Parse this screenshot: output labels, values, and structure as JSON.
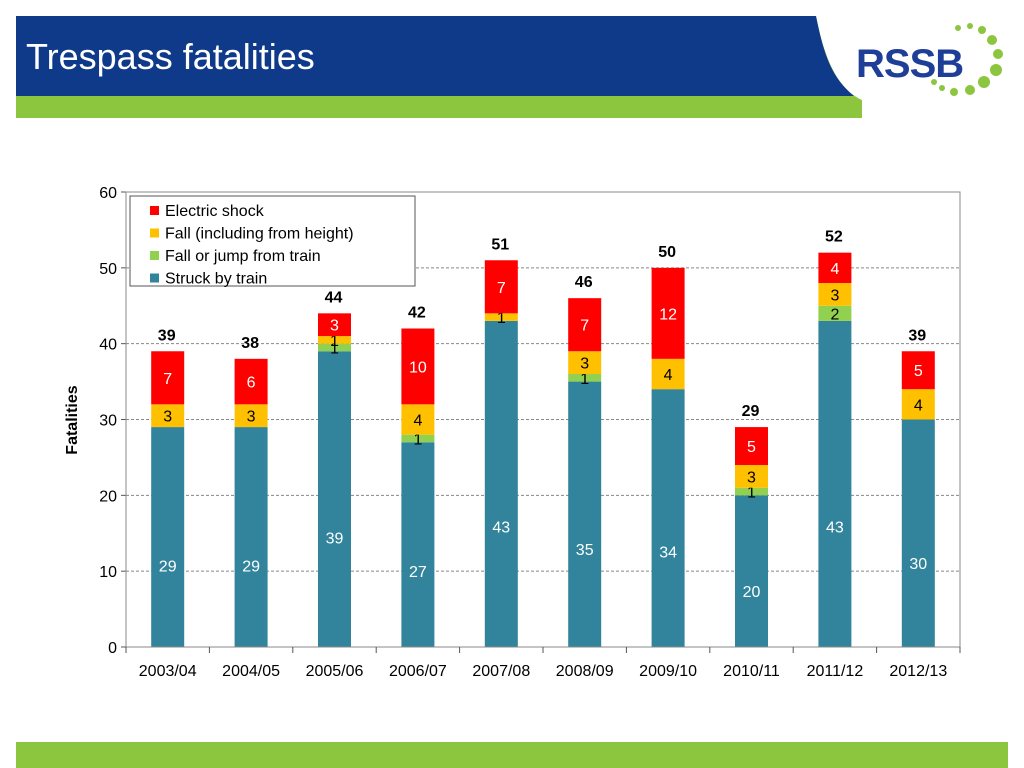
{
  "slide": {
    "title": "Trespass fatalities",
    "logo": "RSSB",
    "colors": {
      "header_blue": "#0f3a8a",
      "header_green": "#8cc63f",
      "logo_blue": "#1f3e98"
    }
  },
  "chart_data": {
    "type": "bar",
    "stacked": true,
    "categories": [
      "2003/04",
      "2004/05",
      "2005/06",
      "2006/07",
      "2007/08",
      "2008/09",
      "2009/10",
      "2010/11",
      "2011/12",
      "2012/13"
    ],
    "series": [
      {
        "name": "Struck by train",
        "color": "#31849b",
        "values": [
          29,
          29,
          39,
          27,
          43,
          35,
          34,
          20,
          43,
          30
        ]
      },
      {
        "name": "Fall or jump from train",
        "color": "#92d050",
        "values": [
          0,
          0,
          1,
          1,
          0,
          1,
          0,
          1,
          2,
          0
        ]
      },
      {
        "name": "Fall (including from height)",
        "color": "#ffc000",
        "values": [
          3,
          3,
          1,
          4,
          1,
          3,
          4,
          3,
          3,
          4
        ]
      },
      {
        "name": "Electric shock",
        "color": "#ff0000",
        "values": [
          7,
          6,
          3,
          10,
          7,
          7,
          12,
          5,
          4,
          5
        ]
      }
    ],
    "totals": [
      39,
      38,
      44,
      42,
      51,
      46,
      50,
      29,
      52,
      39
    ],
    "legend_order": [
      "Electric shock",
      "Fall (including from height)",
      "Fall or jump from train",
      "Struck by train"
    ],
    "legend_position": "top-left",
    "ylabel": "Fatalities",
    "xlabel": "",
    "ylim": [
      0,
      60
    ],
    "yticks": [
      0,
      10,
      20,
      30,
      40,
      50,
      60
    ],
    "grid": true
  }
}
